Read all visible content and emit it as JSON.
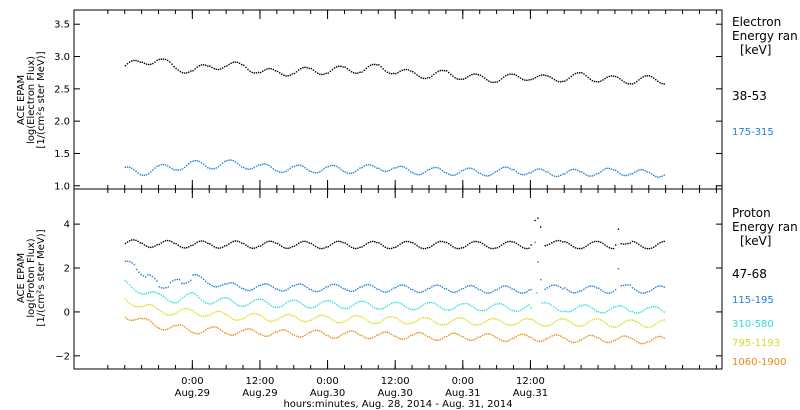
{
  "chart_data": [
    {
      "type": "scatter",
      "panel": "electron",
      "ylabel_lines": [
        "ACE EPAM",
        "log(Electron Flux)",
        "[1/(cm²s ster MeV)]"
      ],
      "ylim": [
        0.95,
        3.72
      ],
      "yticks": [
        1.0,
        1.5,
        2.0,
        2.5,
        3.0,
        3.5
      ],
      "ytick_labels": [
        "1.0",
        "1.5",
        "2.0",
        "2.5",
        "3.0",
        "3.5"
      ],
      "legend_title": [
        "Electron",
        "Energy ran",
        "[keV]"
      ],
      "series": [
        {
          "name": "38-53",
          "color": "#000000",
          "x": [
            0,
            3,
            6,
            9,
            12,
            15,
            18,
            21,
            24,
            27,
            30,
            33,
            36,
            39,
            42,
            45,
            48,
            51,
            54,
            57,
            60,
            63,
            66,
            69,
            72,
            75,
            78,
            81,
            84,
            87,
            90,
            93,
            96
          ],
          "y": [
            2.87,
            2.92,
            2.97,
            2.82,
            2.8,
            2.85,
            2.88,
            2.86,
            2.78,
            2.76,
            2.77,
            2.8,
            2.78,
            2.82,
            2.8,
            2.85,
            2.78,
            2.74,
            2.72,
            2.75,
            2.7,
            2.68,
            2.66,
            2.69,
            2.7,
            2.66,
            2.68,
            2.71,
            2.67,
            2.65,
            2.64,
            2.66,
            2.64
          ]
        },
        {
          "name": "175-315",
          "color": "#1f7fd6",
          "x": [
            0,
            3,
            6,
            9,
            12,
            15,
            18,
            21,
            24,
            27,
            30,
            33,
            36,
            39,
            42,
            45,
            48,
            51,
            54,
            57,
            60,
            63,
            66,
            69,
            72,
            75,
            78,
            81,
            84,
            87,
            90,
            93,
            96
          ],
          "y": [
            1.25,
            1.22,
            1.28,
            1.3,
            1.35,
            1.32,
            1.36,
            1.33,
            1.3,
            1.27,
            1.28,
            1.26,
            1.28,
            1.25,
            1.27,
            1.3,
            1.27,
            1.23,
            1.25,
            1.22,
            1.24,
            1.21,
            1.23,
            1.26,
            1.21,
            1.22,
            1.2,
            1.22,
            1.21,
            1.24,
            1.21,
            1.2,
            1.2
          ]
        }
      ]
    },
    {
      "type": "scatter",
      "panel": "proton",
      "ylabel_lines": [
        "ACE EPAM",
        "log(Proton Flux)",
        "[1/(cm²s ster MeV)]"
      ],
      "ylim": [
        -2.6,
        5.6
      ],
      "yticks": [
        -2,
        0,
        2,
        4
      ],
      "ytick_labels": [
        "−2",
        "0",
        "2",
        "4"
      ],
      "legend_title": [
        "Proton",
        "Energy ran",
        "[keV]"
      ],
      "series": [
        {
          "name": "47-68",
          "color": "#000000",
          "x": [
            0,
            3,
            6,
            9,
            12,
            15,
            18,
            21,
            24,
            27,
            30,
            33,
            36,
            39,
            42,
            45,
            48,
            51,
            54,
            57,
            60,
            63,
            66,
            69,
            72,
            72.7,
            73.2,
            73.7,
            74.5,
            78,
            81,
            84,
            87,
            87.5,
            88,
            90,
            93,
            96
          ],
          "y": [
            3.15,
            3.15,
            3.12,
            3.12,
            3.1,
            3.1,
            3.1,
            3.1,
            3.09,
            3.09,
            3.09,
            3.08,
            3.08,
            3.09,
            3.08,
            3.08,
            3.08,
            3.08,
            3.08,
            3.08,
            3.08,
            3.08,
            3.08,
            3.08,
            3.08,
            4.2,
            4.3,
            3.9,
            3.2,
            3.08,
            3.08,
            3.08,
            3.08,
            3.8,
            3.3,
            3.08,
            3.08,
            3.08
          ]
        },
        {
          "name": "115-195",
          "color": "#1f7fd6",
          "x": [
            0,
            2,
            4,
            6,
            8,
            10,
            12,
            15,
            18,
            21,
            24,
            27,
            30,
            33,
            36,
            39,
            42,
            45,
            48,
            51,
            54,
            57,
            60,
            63,
            66,
            69,
            72,
            72.7,
            73.2,
            73.7,
            74.5,
            78,
            81,
            84,
            87,
            87.5,
            88,
            90,
            93,
            96
          ],
          "y": [
            2.2,
            2.1,
            1.6,
            1.3,
            1.25,
            1.45,
            1.6,
            1.4,
            1.2,
            1.18,
            1.15,
            1.15,
            1.15,
            1.12,
            1.12,
            1.14,
            1.12,
            1.1,
            1.1,
            1.08,
            1.08,
            1.1,
            1.08,
            1.05,
            1.05,
            1.05,
            1.05,
            3.2,
            2.3,
            1.5,
            1.1,
            1.08,
            1.05,
            1.05,
            1.05,
            2.0,
            1.3,
            1.05,
            1.05,
            1.05
          ]
        },
        {
          "name": "310-580",
          "color": "#2ee0d8",
          "x": [
            0,
            3,
            6,
            9,
            12,
            15,
            18,
            21,
            24,
            27,
            30,
            33,
            36,
            39,
            42,
            45,
            48,
            51,
            54,
            57,
            60,
            63,
            66,
            69,
            72,
            73,
            74,
            78,
            81,
            84,
            87,
            90,
            93,
            96
          ],
          "y": [
            1.3,
            1.0,
            0.7,
            0.6,
            0.75,
            0.55,
            0.5,
            0.45,
            0.45,
            0.4,
            0.4,
            0.38,
            0.38,
            0.35,
            0.35,
            0.33,
            0.3,
            0.3,
            0.3,
            0.28,
            0.25,
            0.25,
            0.25,
            0.22,
            0.22,
            0.9,
            0.3,
            0.2,
            0.2,
            0.15,
            0.15,
            0.15,
            0.12,
            0.1
          ]
        },
        {
          "name": "795-1193",
          "color": "#d8dc1c",
          "x": [
            0,
            3,
            6,
            9,
            12,
            15,
            18,
            21,
            24,
            27,
            30,
            33,
            36,
            39,
            42,
            45,
            48,
            51,
            54,
            57,
            60,
            63,
            66,
            69,
            72,
            75,
            78,
            81,
            84,
            87,
            90,
            93,
            96
          ],
          "y": [
            0.6,
            0.3,
            0.1,
            0.0,
            0.05,
            -0.05,
            -0.15,
            -0.2,
            -0.2,
            -0.25,
            -0.25,
            -0.25,
            -0.3,
            -0.3,
            -0.3,
            -0.35,
            -0.35,
            -0.35,
            -0.4,
            -0.4,
            -0.4,
            -0.4,
            -0.45,
            -0.4,
            -0.45,
            -0.45,
            -0.45,
            -0.45,
            -0.45,
            -0.5,
            -0.5,
            -0.5,
            -0.5
          ]
        },
        {
          "name": "1060-1900",
          "color": "#e88a1a",
          "x": [
            0,
            3,
            6,
            9,
            12,
            15,
            18,
            21,
            24,
            27,
            30,
            33,
            36,
            39,
            42,
            45,
            48,
            51,
            54,
            57,
            60,
            63,
            66,
            69,
            72,
            75,
            78,
            81,
            84,
            87,
            90,
            93,
            96
          ],
          "y": [
            -0.1,
            -0.4,
            -0.6,
            -0.7,
            -0.8,
            -0.8,
            -0.85,
            -0.9,
            -0.9,
            -0.95,
            -0.95,
            -0.95,
            -1.0,
            -1.0,
            -1.0,
            -1.05,
            -1.05,
            -1.05,
            -1.1,
            -1.1,
            -1.1,
            -1.1,
            -1.15,
            -1.15,
            -1.15,
            -1.15,
            -1.2,
            -1.2,
            -1.2,
            -1.2,
            -1.25,
            -1.25,
            -1.25
          ]
        }
      ]
    }
  ],
  "xaxis": {
    "xlim": [
      -3,
      112
    ],
    "series_x_offset_hours": 6,
    "major_ticks": [
      {
        "x": 18,
        "line1": "0:00",
        "line2": "Aug.29"
      },
      {
        "x": 30,
        "line1": "12:00",
        "line2": "Aug.29"
      },
      {
        "x": 42,
        "line1": "0:00",
        "line2": "Aug.30"
      },
      {
        "x": 54,
        "line1": "12:00",
        "line2": "Aug.30"
      },
      {
        "x": 66,
        "line1": "0:00",
        "line2": "Aug.31"
      },
      {
        "x": 78,
        "line1": "12:00",
        "line2": "Aug.31"
      }
    ],
    "minor_step_hours": 3,
    "xlabel": "hours:minutes, Aug. 28, 2014 - Aug. 31, 2014"
  }
}
